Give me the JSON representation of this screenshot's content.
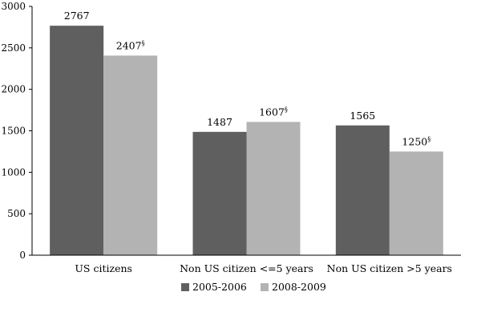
{
  "chart_data": {
    "type": "bar",
    "categories": [
      "US citizens",
      "Non US citizen <=5 years",
      "Non US citizen >5 years"
    ],
    "series": [
      {
        "name": "2005-2006",
        "values": [
          2767,
          1487,
          1565
        ],
        "labels": [
          "2767",
          "1487",
          "1565"
        ],
        "color": "#5f5f5f"
      },
      {
        "name": "2008-2009",
        "values": [
          2407,
          1607,
          1250
        ],
        "labels": [
          "2407§",
          "1607§",
          "1250§"
        ],
        "color": "#b3b3b3"
      }
    ],
    "ylim": [
      0,
      3000
    ],
    "yticks": [
      0,
      500,
      1000,
      1500,
      2000,
      2500,
      3000
    ],
    "grid": false,
    "legend_position": "bottom",
    "title": "",
    "xlabel": "",
    "ylabel": ""
  }
}
